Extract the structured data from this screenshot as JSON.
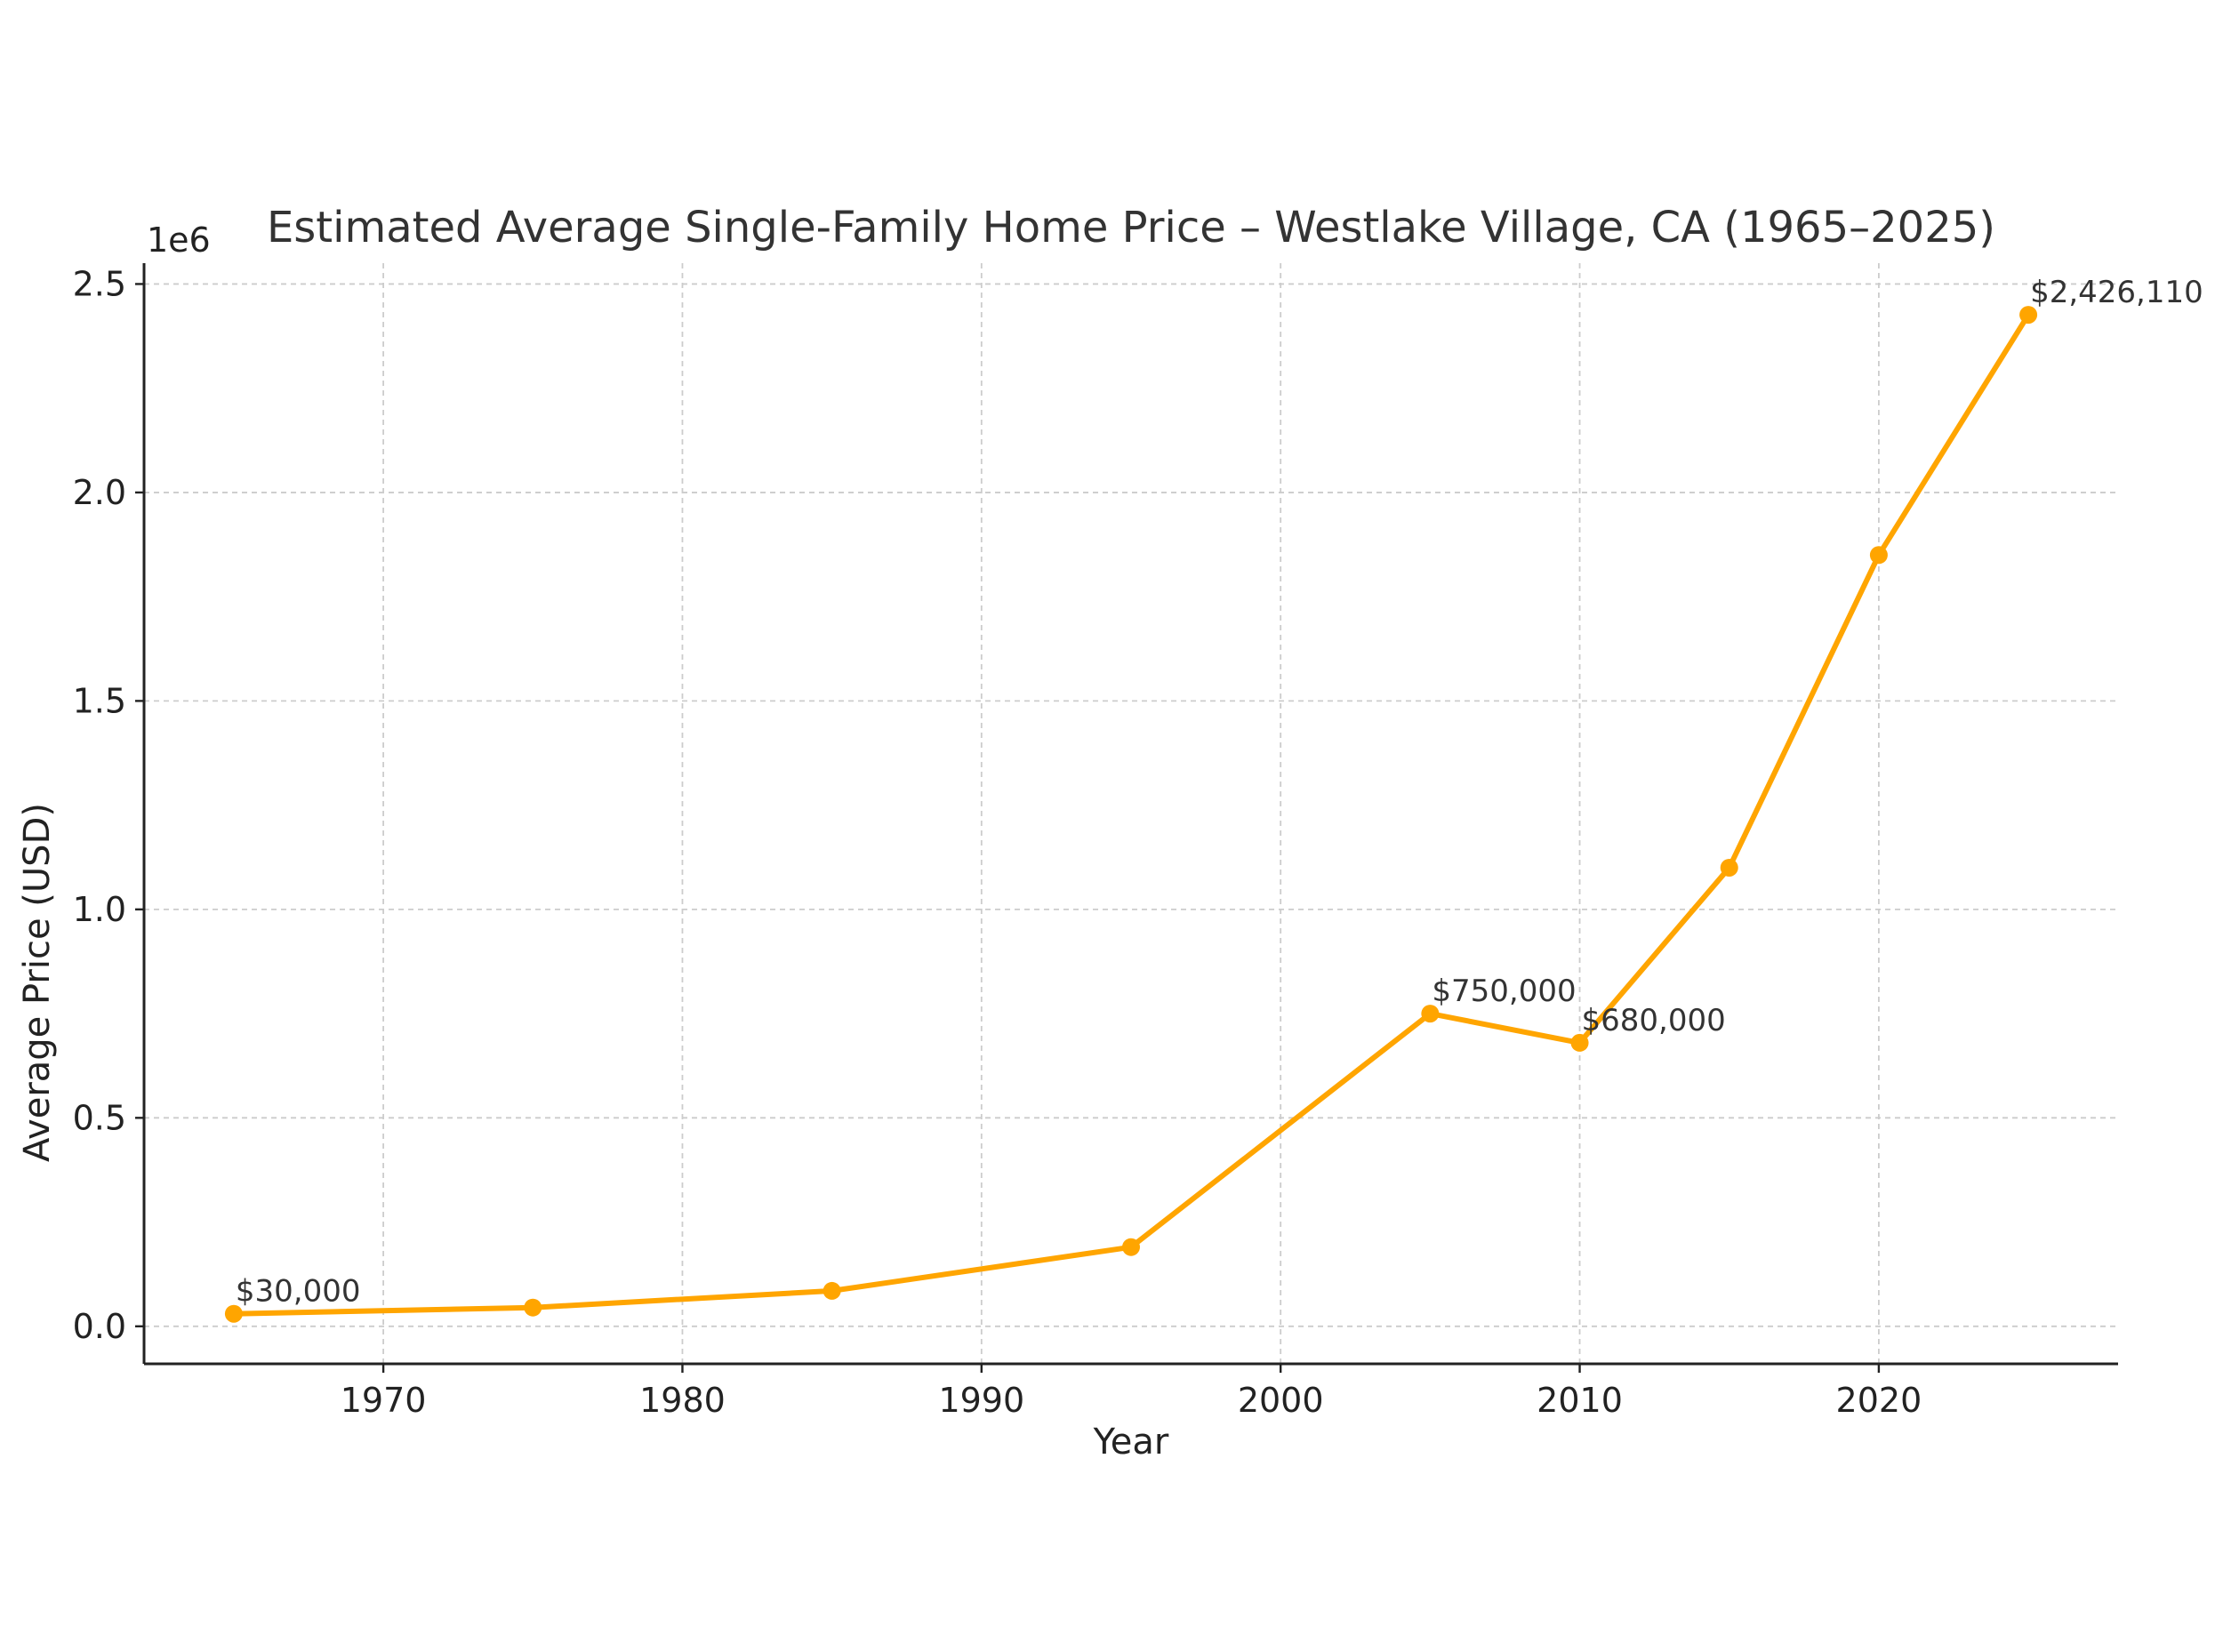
{
  "chart_data": {
    "type": "line",
    "title": "Estimated Average Single-Family Home Price – Westlake Village, CA (1965–2025)",
    "xlabel": "Year",
    "ylabel": "Average Price (USD)",
    "y_offset_label": "1e6",
    "xlim": [
      1962,
      2028
    ],
    "ylim": [
      -90000,
      2550000
    ],
    "grid": true,
    "x_ticks": [
      1970,
      1980,
      1990,
      2000,
      2010,
      2020
    ],
    "x_tick_labels": [
      "1970",
      "1980",
      "1990",
      "2000",
      "2010",
      "2020"
    ],
    "y_ticks": [
      0,
      500000,
      1000000,
      1500000,
      2000000,
      2500000
    ],
    "y_tick_labels": [
      "0.0",
      "0.5",
      "1.0",
      "1.5",
      "2.0",
      "2.5"
    ],
    "color": "#FFA500",
    "series": [
      {
        "name": "Average Price",
        "x": [
          1965,
          1975,
          1985,
          1995,
          2005,
          2010,
          2015,
          2020,
          2025
        ],
        "values": [
          30000,
          45000,
          85000,
          190000,
          750000,
          680000,
          1100000,
          1850000,
          2426110
        ]
      }
    ],
    "annotations": [
      {
        "x": 1965,
        "y": 30000,
        "text": "$30,000"
      },
      {
        "x": 2005,
        "y": 750000,
        "text": "$750,000"
      },
      {
        "x": 2010,
        "y": 680000,
        "text": "$680,000"
      },
      {
        "x": 2025,
        "y": 2426110,
        "text": "$2,426,110"
      }
    ]
  }
}
